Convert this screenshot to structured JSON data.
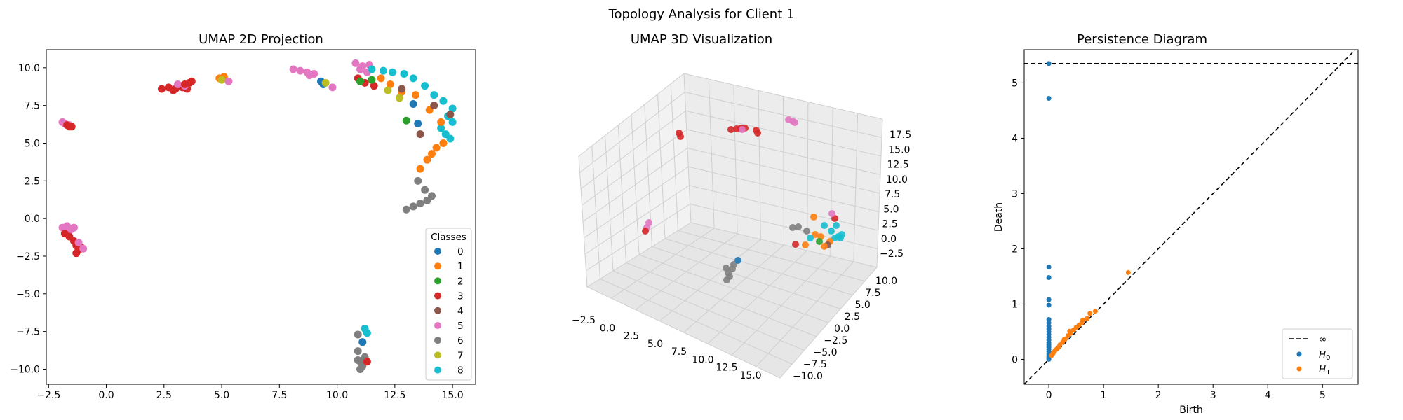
{
  "figure": {
    "suptitle": "Topology Analysis for Client 1"
  },
  "chart_data": [
    {
      "type": "scatter",
      "title": "UMAP 2D Projection",
      "xlabel": "",
      "ylabel": "",
      "xlim": [
        -2.6,
        16.0
      ],
      "ylim": [
        -11.0,
        11.2
      ],
      "xticks": [
        -2.5,
        0.0,
        2.5,
        5.0,
        7.5,
        10.0,
        12.5,
        15.0
      ],
      "xtick_labels": [
        "−2.5",
        "0.0",
        "2.5",
        "5.0",
        "7.5",
        "10.0",
        "12.5",
        "15.0"
      ],
      "yticks": [
        -10.0,
        -7.5,
        -5.0,
        -2.5,
        0.0,
        2.5,
        5.0,
        7.5,
        10.0
      ],
      "ytick_labels": [
        "−10.0",
        "−7.5",
        "−5.0",
        "−2.5",
        "0.0",
        "2.5",
        "5.0",
        "7.5",
        "10.0"
      ],
      "legend": {
        "title": "Classes",
        "placement": "lower-right",
        "entries": [
          "0",
          "1",
          "2",
          "3",
          "4",
          "5",
          "6",
          "7",
          "8"
        ]
      },
      "class_colors": [
        "#1f77b4",
        "#ff7f0e",
        "#2ca02c",
        "#d62728",
        "#8c564b",
        "#e377c2",
        "#7f7f7f",
        "#bcbd22",
        "#17becf"
      ],
      "clusters": [
        {
          "class": 5,
          "x": [
            -1.9,
            -1.8,
            -1.6
          ],
          "y": [
            6.4,
            6.3,
            6.2
          ]
        },
        {
          "class": 3,
          "x": [
            -1.7,
            -1.6,
            -1.5
          ],
          "y": [
            6.2,
            6.1,
            6.1
          ]
        },
        {
          "class": 5,
          "x": [
            -1.9,
            -1.7,
            -1.5,
            -1.4,
            -1.6
          ],
          "y": [
            -0.6,
            -0.5,
            -0.7,
            -0.6,
            -0.8
          ]
        },
        {
          "class": 3,
          "x": [
            -1.8,
            -1.6,
            -1.4,
            -1.3,
            -1.2,
            -1.3,
            -1.1
          ],
          "y": [
            -1.0,
            -1.2,
            -1.5,
            -1.8,
            -2.1,
            -2.3,
            -1.9
          ]
        },
        {
          "class": 5,
          "x": [
            -1.2,
            -1.0
          ],
          "y": [
            -1.6,
            -2.0
          ]
        },
        {
          "class": 3,
          "x": [
            2.4,
            2.7,
            3.0,
            3.3,
            3.5,
            2.9,
            3.2
          ],
          "y": [
            8.6,
            8.7,
            8.6,
            8.7,
            8.6,
            8.5,
            8.8
          ]
        },
        {
          "class": 5,
          "x": [
            3.1,
            3.4
          ],
          "y": [
            8.9,
            8.8
          ]
        },
        {
          "class": 3,
          "x": [
            3.4,
            3.6,
            3.7
          ],
          "y": [
            8.9,
            9.0,
            9.1
          ]
        },
        {
          "class": 1,
          "x": [
            4.9,
            5.1
          ],
          "y": [
            9.3,
            9.4
          ]
        },
        {
          "class": 7,
          "x": [
            5.0
          ],
          "y": [
            9.2
          ]
        },
        {
          "class": 5,
          "x": [
            5.3
          ],
          "y": [
            9.1
          ]
        },
        {
          "class": 5,
          "x": [
            8.1,
            8.4,
            8.7,
            9.0,
            8.8
          ],
          "y": [
            9.9,
            9.8,
            9.7,
            9.6,
            9.5
          ]
        },
        {
          "class": 0,
          "x": [
            9.3,
            9.4
          ],
          "y": [
            9.1,
            8.9
          ]
        },
        {
          "class": 7,
          "x": [
            9.5
          ],
          "y": [
            9.0
          ]
        },
        {
          "class": 5,
          "x": [
            9.8
          ],
          "y": [
            8.7
          ]
        },
        {
          "class": 5,
          "x": [
            10.8,
            11.1,
            11.4,
            11.0,
            11.3
          ],
          "y": [
            10.3,
            10.1,
            10.2,
            9.9,
            9.7
          ]
        },
        {
          "class": 3,
          "x": [
            10.9,
            11.2,
            11.6
          ],
          "y": [
            9.3,
            9.0,
            8.8
          ]
        },
        {
          "class": 2,
          "x": [
            11.0,
            11.5
          ],
          "y": [
            9.1,
            9.2
          ]
        },
        {
          "class": 8,
          "x": [
            11.5,
            12.0,
            12.4,
            12.9,
            13.3,
            13.8,
            14.2,
            14.6,
            15.0,
            14.8,
            15.0,
            14.5,
            14.7,
            14.9
          ],
          "y": [
            9.9,
            9.8,
            9.7,
            9.6,
            9.3,
            8.8,
            8.2,
            7.8,
            7.3,
            6.8,
            6.4,
            6.0,
            5.6,
            5.3
          ]
        },
        {
          "class": 1,
          "x": [
            11.9,
            12.3,
            12.8,
            13.4,
            14.0,
            14.5,
            14.6,
            14.3,
            14.1,
            13.9,
            13.6
          ],
          "y": [
            9.3,
            8.9,
            8.4,
            8.2,
            7.2,
            6.4,
            5.0,
            4.7,
            4.3,
            3.9,
            3.3
          ]
        },
        {
          "class": 4,
          "x": [
            12.8,
            13.6,
            14.2,
            14.9
          ],
          "y": [
            8.6,
            5.6,
            7.5,
            6.9
          ]
        },
        {
          "class": 7,
          "x": [
            12.2,
            12.7
          ],
          "y": [
            8.5,
            8.0
          ]
        },
        {
          "class": 2,
          "x": [
            13.0
          ],
          "y": [
            6.5
          ]
        },
        {
          "class": 0,
          "x": [
            13.3,
            13.5
          ],
          "y": [
            7.6,
            6.3
          ]
        },
        {
          "class": 6,
          "x": [
            13.5,
            13.8,
            14.1,
            13.9,
            13.6,
            13.3,
            13.0
          ],
          "y": [
            2.5,
            1.9,
            1.5,
            1.2,
            1.0,
            0.8,
            0.6
          ]
        },
        {
          "class": 6,
          "x": [
            10.9,
            11.1,
            10.9,
            11.2,
            11.0,
            11.1,
            11.0,
            10.9
          ],
          "y": [
            -7.7,
            -8.2,
            -8.8,
            -9.2,
            -9.5,
            -9.8,
            -10.0,
            -9.4
          ]
        },
        {
          "class": 8,
          "x": [
            11.2,
            11.3
          ],
          "y": [
            -7.3,
            -7.6
          ]
        },
        {
          "class": 0,
          "x": [
            11.1
          ],
          "y": [
            -8.2
          ]
        },
        {
          "class": 3,
          "x": [
            11.3
          ],
          "y": [
            -9.5
          ]
        }
      ]
    },
    {
      "type": "scatter",
      "title": "UMAP 3D Visualization",
      "xlabel": "",
      "ylabel": "",
      "zlabel": "",
      "xtick_labels": [
        "−2.5",
        "0.0",
        "2.5",
        "5.0",
        "7.5",
        "10.0",
        "12.5",
        "15.0"
      ],
      "ytick_labels": [
        "−10.0",
        "−7.5",
        "−5.0",
        "−2.5",
        "0.0",
        "2.5",
        "5.0",
        "7.5",
        "10.0"
      ],
      "ztick_labels": [
        "−2.5",
        "0.0",
        "2.5",
        "5.0",
        "7.5",
        "10.0",
        "12.5",
        "15.0",
        "17.5"
      ],
      "grid": true
    },
    {
      "type": "scatter",
      "title": "Persistence Diagram",
      "xlabel": "Birth",
      "ylabel": "Death",
      "xlim": [
        -0.45,
        5.65
      ],
      "ylim": [
        -0.45,
        5.6
      ],
      "xticks": [
        0,
        1,
        2,
        3,
        4,
        5
      ],
      "xtick_labels": [
        "0",
        "1",
        "2",
        "3",
        "4",
        "5"
      ],
      "yticks": [
        0,
        1,
        2,
        3,
        4,
        5
      ],
      "ytick_labels": [
        "0",
        "1",
        "2",
        "3",
        "4",
        "5"
      ],
      "infinity_death": 5.35,
      "legend": {
        "placement": "lower-right",
        "entries": [
          "∞",
          "H0",
          "H1"
        ]
      },
      "series": [
        {
          "name": "H0",
          "color": "#1f77b4",
          "x": [
            0,
            0,
            0,
            0,
            0,
            0,
            0,
            0,
            0,
            0,
            0,
            0,
            0,
            0,
            0,
            0,
            0,
            0,
            0,
            0,
            0,
            0,
            0,
            0
          ],
          "y": [
            5.35,
            4.72,
            1.67,
            1.48,
            1.08,
            0.98,
            0.72,
            0.66,
            0.6,
            0.55,
            0.5,
            0.45,
            0.4,
            0.35,
            0.3,
            0.26,
            0.22,
            0.18,
            0.14,
            0.1,
            0.07,
            0.04,
            0.02,
            0.0
          ]
        },
        {
          "name": "H1",
          "color": "#ff7f0e",
          "x": [
            1.45,
            0.85,
            0.75,
            0.7,
            0.6,
            0.5,
            0.45,
            0.4,
            0.35,
            0.3,
            0.25,
            0.2,
            0.18,
            0.15,
            0.1,
            0.08,
            0.05,
            0.62,
            0.55,
            0.38,
            0.28,
            0.12
          ],
          "y": [
            1.57,
            0.87,
            0.83,
            0.74,
            0.66,
            0.58,
            0.53,
            0.47,
            0.43,
            0.37,
            0.31,
            0.26,
            0.22,
            0.19,
            0.14,
            0.11,
            0.07,
            0.71,
            0.62,
            0.51,
            0.36,
            0.17
          ]
        }
      ]
    }
  ]
}
